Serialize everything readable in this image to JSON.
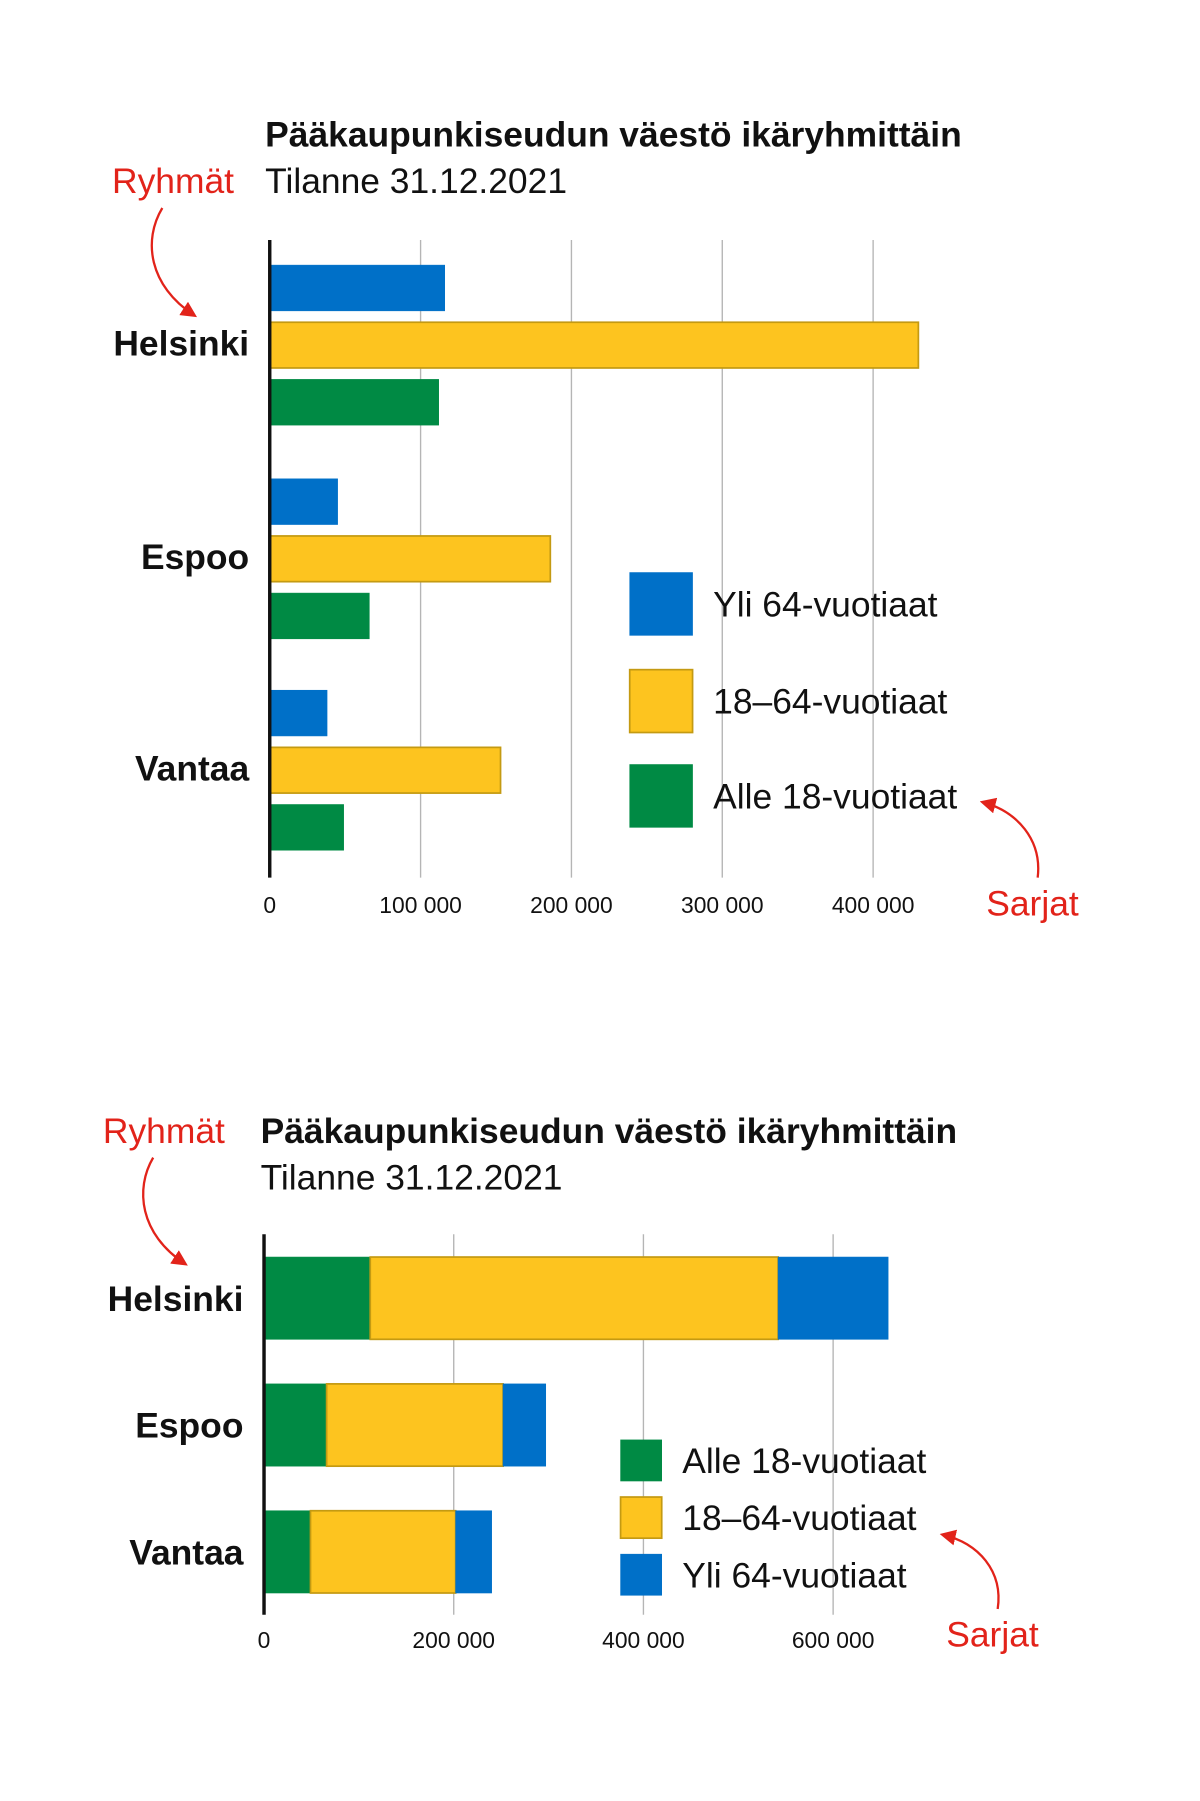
{
  "colors": {
    "blue": "#0070c8",
    "yellow": "#fdc41f",
    "yellow_border": "#c49a12",
    "green": "#008a44",
    "annotation": "#e2231a"
  },
  "annotations": {
    "groups": "Ryhmät",
    "series": "Sarjat"
  },
  "chart_data": [
    {
      "type": "bar",
      "orientation": "horizontal",
      "mode": "grouped",
      "title": "Pääkaupunkiseudun väestö ikäryhmittäin",
      "subtitle": "Tilanne 31.12.2021",
      "categories": [
        "Helsinki",
        "Espoo",
        "Vantaa"
      ],
      "series": [
        {
          "name": "Yli 64-vuotiaat",
          "color": "#0070c8",
          "values": [
            116000,
            45000,
            38000
          ]
        },
        {
          "name": "18–64-vuotiaat",
          "color": "#fdc41f",
          "values": [
            430000,
            186000,
            153000
          ]
        },
        {
          "name": "Alle 18-vuotiaat",
          "color": "#008a44",
          "values": [
            112000,
            66000,
            49000
          ]
        }
      ],
      "xlim": [
        0,
        450000
      ],
      "xticks": [
        0,
        100000,
        200000,
        300000,
        400000
      ],
      "xtick_labels": [
        "0",
        "100 000",
        "200 000",
        "300 000",
        "400 000"
      ],
      "grid": true,
      "legend_placement": "bottom-right"
    },
    {
      "type": "bar",
      "orientation": "horizontal",
      "mode": "stacked",
      "title": "Pääkaupunkiseudun väestö ikäryhmittäin",
      "subtitle": "Tilanne 31.12.2021",
      "categories": [
        "Helsinki",
        "Espoo",
        "Vantaa"
      ],
      "series": [
        {
          "name": "Alle 18-vuotiaat",
          "color": "#008a44",
          "values": [
            112000,
            66000,
            49000
          ]
        },
        {
          "name": "18–64-vuotiaat",
          "color": "#fdc41f",
          "values": [
            430000,
            186000,
            153000
          ]
        },
        {
          "name": "Yli 64-vuotiaat",
          "color": "#0070c8",
          "values": [
            116000,
            45000,
            38000
          ]
        }
      ],
      "xlim": [
        0,
        700000
      ],
      "xticks": [
        0,
        200000,
        400000,
        600000
      ],
      "xtick_labels": [
        "0",
        "200 000",
        "400 000",
        "600 000"
      ],
      "grid": true,
      "legend_placement": "bottom-right"
    }
  ]
}
